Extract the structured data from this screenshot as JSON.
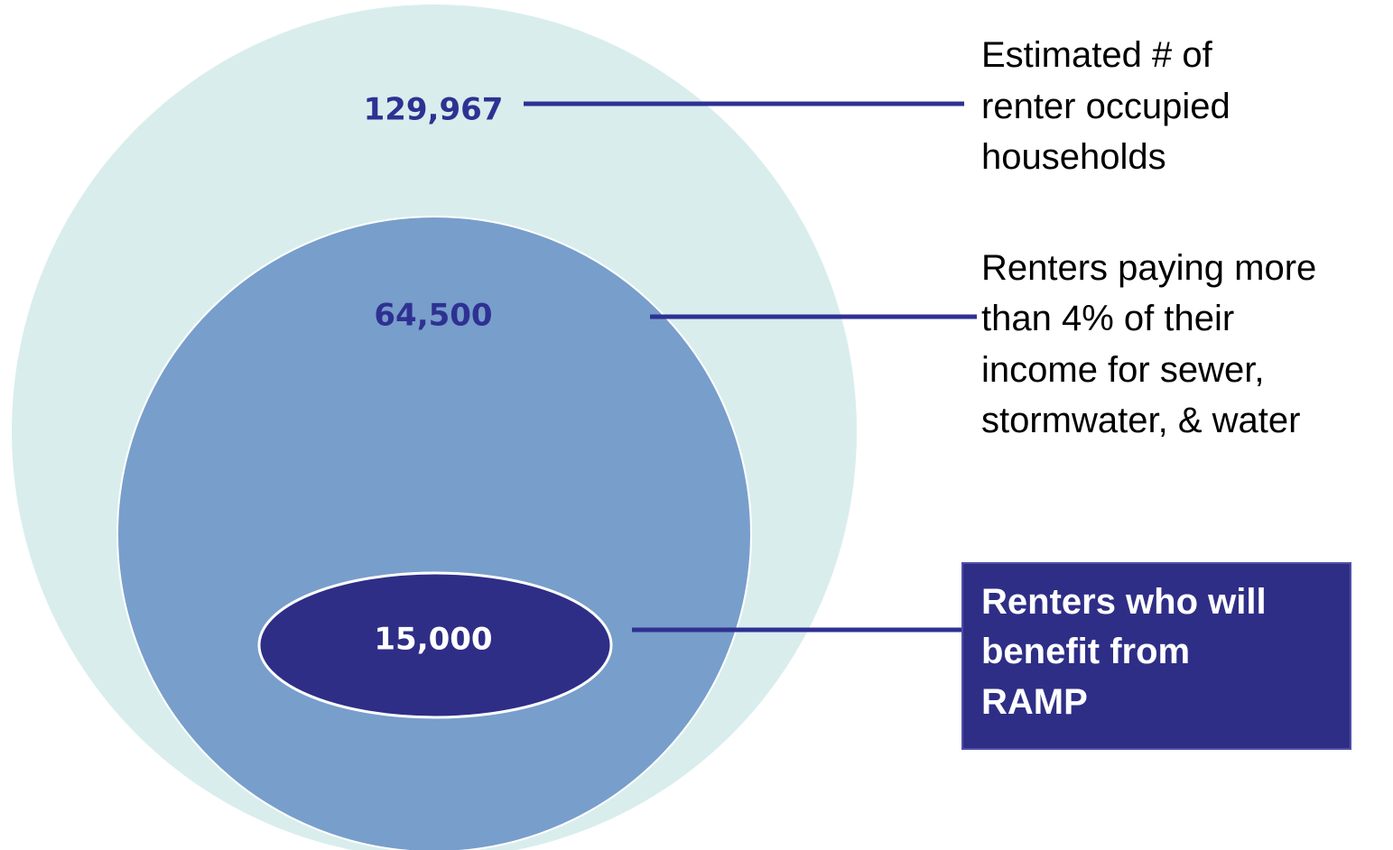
{
  "levels": [
    {
      "value": "129,967",
      "label": [
        "Estimated # of",
        "renter occupied",
        "households"
      ]
    },
    {
      "value": "64,500",
      "label": [
        "Renters paying more",
        "than 4% of their",
        "income for sewer,",
        "stormwater, & water"
      ]
    },
    {
      "value": "15,000",
      "label": [
        "Renters who will",
        "benefit from",
        "RAMP"
      ]
    }
  ]
}
